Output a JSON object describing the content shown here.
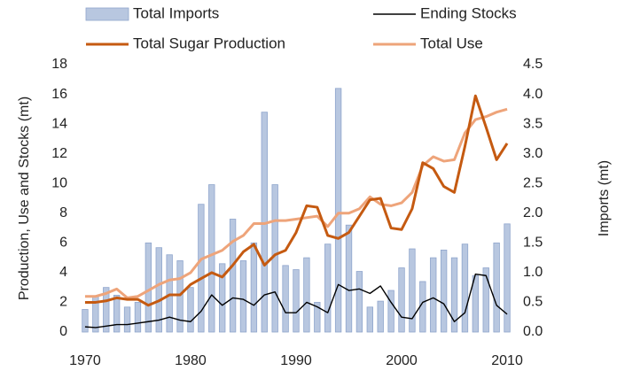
{
  "chart_data": {
    "type": "combo",
    "axis_labels": {
      "y": "Production, Use and Stocks (mt)",
      "y2": "Imports (mt)"
    },
    "x": [
      1970,
      1971,
      1972,
      1973,
      1974,
      1975,
      1976,
      1977,
      1978,
      1979,
      1980,
      1981,
      1982,
      1983,
      1984,
      1985,
      1986,
      1987,
      1988,
      1989,
      1990,
      1991,
      1992,
      1993,
      1994,
      1995,
      1996,
      1997,
      1998,
      1999,
      2000,
      2001,
      2002,
      2003,
      2004,
      2005,
      2006,
      2007,
      2008,
      2009,
      2010
    ],
    "xlim": [
      1969.5,
      2010.5
    ],
    "xticks": [
      1970,
      1980,
      1990,
      2000,
      2010
    ],
    "ylim": [
      0,
      18
    ],
    "yticks": [
      0,
      2,
      4,
      6,
      8,
      10,
      12,
      14,
      16,
      18
    ],
    "y2lim": [
      0,
      4.5
    ],
    "y2ticks": [
      {
        "value": 0,
        "label": "0.0"
      },
      {
        "value": 0.5,
        "label": "0.5"
      },
      {
        "value": 1,
        "label": "1.0"
      },
      {
        "value": 1.5,
        "label": "1.5"
      },
      {
        "value": 2,
        "label": "2.0"
      },
      {
        "value": 2.5,
        "label": "2.5"
      },
      {
        "value": 3,
        "label": "3.0"
      },
      {
        "value": 3.5,
        "label": "3.5"
      },
      {
        "value": 4,
        "label": "4.0"
      },
      {
        "value": 4.5,
        "label": "4.5"
      }
    ],
    "series": [
      {
        "name": "Total Imports",
        "kind": "bar",
        "axis": "y2",
        "color": "#b8c7e0",
        "values": [
          0.38,
          0.6,
          0.75,
          0.62,
          0.42,
          0.5,
          1.5,
          1.42,
          1.3,
          1.2,
          0.75,
          2.15,
          2.48,
          1.15,
          1.9,
          1.2,
          1.5,
          3.7,
          2.48,
          1.12,
          1.05,
          1.25,
          0.5,
          1.48,
          4.1,
          1.8,
          1.02,
          0.42,
          0.52,
          0.7,
          1.08,
          1.4,
          0.85,
          1.25,
          1.38,
          1.25,
          1.48,
          0.95,
          1.08,
          1.5,
          1.82
        ]
      },
      {
        "name": "Ending Stocks",
        "kind": "line",
        "axis": "y",
        "color": "#000000",
        "values": [
          0.35,
          0.3,
          0.4,
          0.5,
          0.5,
          0.6,
          0.7,
          0.8,
          1.0,
          0.8,
          0.7,
          1.4,
          2.5,
          1.8,
          2.3,
          2.2,
          1.8,
          2.5,
          2.7,
          1.3,
          1.3,
          2.0,
          1.7,
          1.3,
          3.2,
          2.8,
          2.9,
          2.6,
          3.1,
          2.0,
          1.0,
          0.9,
          2.0,
          2.3,
          1.9,
          0.7,
          1.3,
          3.9,
          3.8,
          1.8,
          1.2
        ]
      },
      {
        "name": "Total Sugar Production",
        "kind": "line",
        "axis": "y",
        "color": "#c55a11",
        "values": [
          2.0,
          2.0,
          2.1,
          2.3,
          2.2,
          2.2,
          1.8,
          2.1,
          2.5,
          2.5,
          3.2,
          3.6,
          4.0,
          3.7,
          4.5,
          5.4,
          5.9,
          4.5,
          5.2,
          5.5,
          6.7,
          8.5,
          8.4,
          6.5,
          6.3,
          6.7,
          7.8,
          8.9,
          9.0,
          7.0,
          6.9,
          8.3,
          11.4,
          11.0,
          9.8,
          9.4,
          12.5,
          15.9,
          13.8,
          11.6,
          12.7
        ]
      },
      {
        "name": "Total Use",
        "kind": "line",
        "axis": "y",
        "color": "#eea47a",
        "values": [
          2.4,
          2.4,
          2.6,
          2.9,
          2.3,
          2.4,
          2.8,
          3.2,
          3.5,
          3.6,
          4.0,
          4.9,
          5.2,
          5.5,
          6.1,
          6.5,
          7.3,
          7.3,
          7.5,
          7.5,
          7.6,
          7.7,
          7.8,
          7.1,
          8.0,
          8.0,
          8.3,
          9.1,
          8.6,
          8.5,
          8.7,
          9.4,
          11.2,
          11.8,
          11.5,
          11.6,
          13.4,
          14.3,
          14.5,
          14.8,
          15.0
        ]
      }
    ]
  }
}
